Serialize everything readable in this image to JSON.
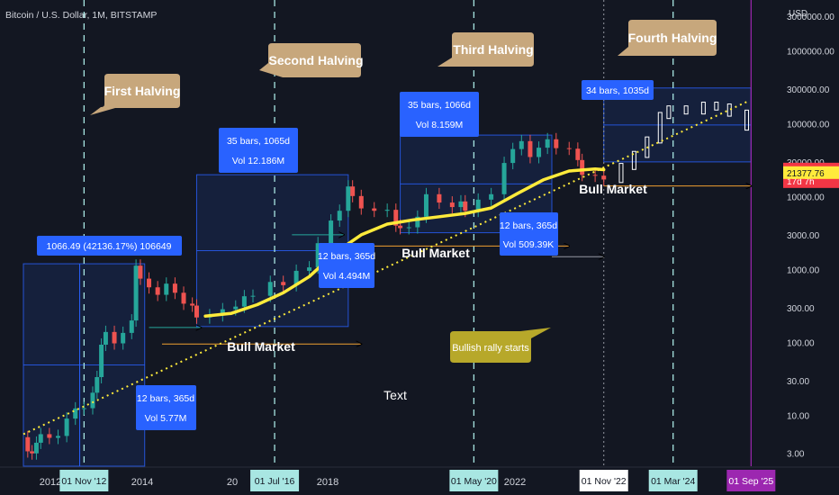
{
  "header": {
    "symbol_title": "Bitcoin / U.S. Dollar, 1M, BITSTAMP",
    "currency": "USD"
  },
  "price_axis": {
    "ticks": [
      "3000000.00",
      "1000000.00",
      "300000.00",
      "100000.00",
      "30000.00",
      "10000.00",
      "3000.00",
      "1000.00",
      "300.00",
      "100.00",
      "30.00",
      "10.00",
      "3.00"
    ],
    "badges": [
      {
        "text": "23257.77",
        "subtext": "17d 7h",
        "color": "#f23645"
      },
      {
        "text": "21377.76",
        "color": "#ffeb3b"
      }
    ]
  },
  "time_axis": {
    "labels": [
      "2012",
      "2014",
      "20",
      "2018",
      "2022",
      "Mar"
    ],
    "badges": [
      {
        "text": "01 Nov '12",
        "color": "#a8e6e2"
      },
      {
        "text": "01 Jul '16",
        "color": "#a8e6e2"
      },
      {
        "text": "01 May '20",
        "color": "#a8e6e2"
      },
      {
        "text": "01 Nov '22",
        "color": "#ffffff"
      },
      {
        "text": "01 Mar '24",
        "color": "#a8e6e2"
      },
      {
        "text": "01 Sep '25",
        "color": "#9c27b0"
      }
    ]
  },
  "callouts": {
    "first": "First Halving",
    "second": "Second Halving",
    "third": "Third Halving",
    "fourth": "Fourth Halving",
    "rally": "Bullish rally starts"
  },
  "range_labels": {
    "r1_line1": "1066.49 (42136.17%) 106649",
    "r2_line1": "35 bars, 1065d",
    "r2_line2": "Vol 12.186M",
    "r3_line1": "35 bars, 1066d",
    "r3_line2": "Vol 8.159M",
    "r4_line1": "34 bars, 1035d",
    "d1_line1": "12 bars, 365d",
    "d1_line2": "Vol 5.77M",
    "d2_line1": "12 bars, 365d",
    "d2_line2": "Vol 4.494M",
    "d3_line1": "12 bars, 365d",
    "d3_line2": "Vol 509.39K"
  },
  "text_labels": {
    "bull1": "Bull Market",
    "bull2": "Bull Market",
    "bull3": "Bull Market",
    "free_text": "Text"
  },
  "colors": {
    "background": "#131722",
    "up": "#26a69a",
    "down": "#ef5350",
    "callout": "#c7a77c",
    "rally_callout": "#b7a82a",
    "range_box": "#2962ff",
    "moving_average": "#ffeb3b",
    "halving_line": "#a8e6e2",
    "current_line": "#9c27b0"
  },
  "chart_data": {
    "type": "candlestick",
    "title": "Bitcoin / U.S. Dollar, 1M, BITSTAMP",
    "y_scale": "log",
    "ylim": [
      2,
      5000000
    ],
    "x_range": [
      "2011-09",
      "2026-04"
    ],
    "series": [
      {
        "name": "Bitcoin / U.S. Dollar",
        "points": [
          [
            "2011-09",
            5.0
          ],
          [
            "2011-10",
            3.2
          ],
          [
            "2011-11",
            3.0
          ],
          [
            "2011-12",
            4.2
          ],
          [
            "2012-01",
            5.5
          ],
          [
            "2012-03",
            4.9
          ],
          [
            "2012-05",
            5.2
          ],
          [
            "2012-07",
            9.0
          ],
          [
            "2012-09",
            12.4
          ],
          [
            "2012-11",
            12.5
          ],
          [
            "2013-01",
            20.4
          ],
          [
            "2013-02",
            33.4
          ],
          [
            "2013-03",
            93
          ],
          [
            "2013-04",
            139
          ],
          [
            "2013-06",
            97
          ],
          [
            "2013-08",
            135
          ],
          [
            "2013-10",
            200
          ],
          [
            "2013-11",
            1130
          ],
          [
            "2013-12",
            750
          ],
          [
            "2014-02",
            570
          ],
          [
            "2014-04",
            450
          ],
          [
            "2014-06",
            640
          ],
          [
            "2014-08",
            480
          ],
          [
            "2014-10",
            340
          ],
          [
            "2014-12",
            320
          ],
          [
            "2015-01",
            220
          ],
          [
            "2015-04",
            236
          ],
          [
            "2015-07",
            285
          ],
          [
            "2015-10",
            310
          ],
          [
            "2015-12",
            430
          ],
          [
            "2016-02",
            436
          ],
          [
            "2016-06",
            675
          ],
          [
            "2016-09",
            610
          ],
          [
            "2016-12",
            960
          ],
          [
            "2017-03",
            1070
          ],
          [
            "2017-05",
            2300
          ],
          [
            "2017-08",
            4700
          ],
          [
            "2017-10",
            6400
          ],
          [
            "2017-12",
            13800
          ],
          [
            "2018-01",
            10200
          ],
          [
            "2018-03",
            6900
          ],
          [
            "2018-06",
            6400
          ],
          [
            "2018-09",
            6600
          ],
          [
            "2018-11",
            4000
          ],
          [
            "2018-12",
            3700
          ],
          [
            "2019-02",
            3800
          ],
          [
            "2019-04",
            5300
          ],
          [
            "2019-06",
            10800
          ],
          [
            "2019-09",
            8300
          ],
          [
            "2019-12",
            7200
          ],
          [
            "2020-02",
            8600
          ],
          [
            "2020-03",
            6400
          ],
          [
            "2020-06",
            9100
          ],
          [
            "2020-09",
            10800
          ],
          [
            "2020-12",
            29000
          ],
          [
            "2021-02",
            45000
          ],
          [
            "2021-04",
            57800
          ],
          [
            "2021-06",
            35000
          ],
          [
            "2021-08",
            47000
          ],
          [
            "2021-10",
            61300
          ],
          [
            "2021-12",
            46300
          ],
          [
            "2022-03",
            45500
          ],
          [
            "2022-05",
            31800
          ],
          [
            "2022-06",
            19900
          ],
          [
            "2022-09",
            19400
          ],
          [
            "2022-11",
            17200
          ]
        ]
      },
      {
        "name": "Moving average",
        "points": [
          [
            "2015-03",
            230
          ],
          [
            "2015-09",
            250
          ],
          [
            "2016-03",
            330
          ],
          [
            "2016-09",
            480
          ],
          [
            "2017-03",
            800
          ],
          [
            "2017-09",
            1700
          ],
          [
            "2018-03",
            3000
          ],
          [
            "2018-09",
            4200
          ],
          [
            "2019-03",
            4800
          ],
          [
            "2019-09",
            5300
          ],
          [
            "2020-03",
            5900
          ],
          [
            "2020-09",
            7000
          ],
          [
            "2021-03",
            11000
          ],
          [
            "2021-09",
            17000
          ],
          [
            "2022-03",
            22500
          ],
          [
            "2022-09",
            24000
          ],
          [
            "2022-11",
            23500
          ]
        ]
      },
      {
        "name": "Trend line",
        "points": [
          [
            "2011-09",
            5.5
          ],
          [
            "2025-08",
            200000
          ]
        ]
      },
      {
        "name": "Projection",
        "points": [
          [
            "2022-12",
            17200
          ],
          [
            "2023-03",
            26000
          ],
          [
            "2023-06",
            38000
          ],
          [
            "2023-09",
            60000
          ],
          [
            "2023-12",
            130000
          ],
          [
            "2024-02",
            160000
          ],
          [
            "2024-06",
            150000
          ],
          [
            "2024-10",
            180000
          ],
          [
            "2025-01",
            170000
          ],
          [
            "2025-04",
            140000
          ],
          [
            "2025-08",
            90000
          ]
        ]
      }
    ],
    "halvings": [
      "2012-11-01",
      "2016-07-01",
      "2020-05-01",
      "2024-03-01"
    ],
    "current_date": "2022-11-01",
    "cursor_date": "2025-09-01",
    "ranges": [
      {
        "from": "2011-09",
        "to": "2014-01",
        "low": 2.0,
        "high": 1200
      },
      {
        "from": "2015-01",
        "to": "2017-12",
        "low": 165,
        "high": 20000
      },
      {
        "from": "2018-12",
        "to": "2021-11",
        "low": 3200,
        "high": 70000
      },
      {
        "from": "2022-11",
        "to": "2025-09",
        "low": 30000,
        "high": 310000
      }
    ],
    "grid": false,
    "legend": "none"
  }
}
